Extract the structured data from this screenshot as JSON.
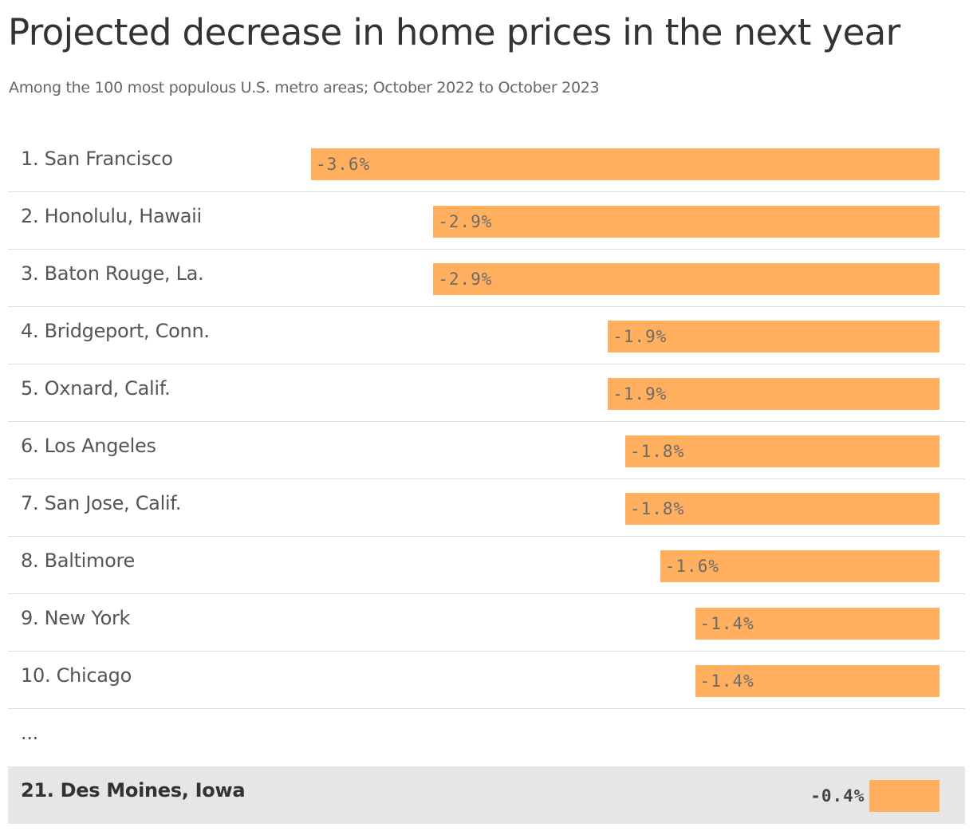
{
  "header": {
    "title": "Projected decrease in home prices in the next year",
    "subtitle": "Among the 100 most populous U.S. metro areas; October 2022 to October 2023"
  },
  "chart_data": {
    "type": "bar",
    "orientation": "horizontal",
    "categories": [
      "1. San Francisco",
      "2. Honolulu, Hawaii",
      "3. Baton Rouge, La.",
      "4. Bridgeport, Conn.",
      "5. Oxnard, Calif.",
      "6. Los Angeles",
      "7. San Jose, Calif.",
      "8. Baltimore",
      "9. New York",
      "10. Chicago",
      "...",
      "21. Des Moines, Iowa"
    ],
    "values": [
      -3.6,
      -2.9,
      -2.9,
      -1.9,
      -1.9,
      -1.8,
      -1.8,
      -1.6,
      -1.4,
      -1.4,
      null,
      -0.4
    ],
    "value_labels": [
      "-3.6%",
      "-2.9%",
      "-2.9%",
      "-1.9%",
      "-1.9%",
      "-1.8%",
      "-1.8%",
      "-1.6%",
      "-1.4%",
      "-1.4%",
      "",
      "-0.4%"
    ],
    "highlighted": "21. Des Moines, Iowa",
    "bar_color": "#ffaf5d",
    "highlight_background": "#e6e6e8",
    "xlim": [
      -3.6,
      0
    ]
  }
}
